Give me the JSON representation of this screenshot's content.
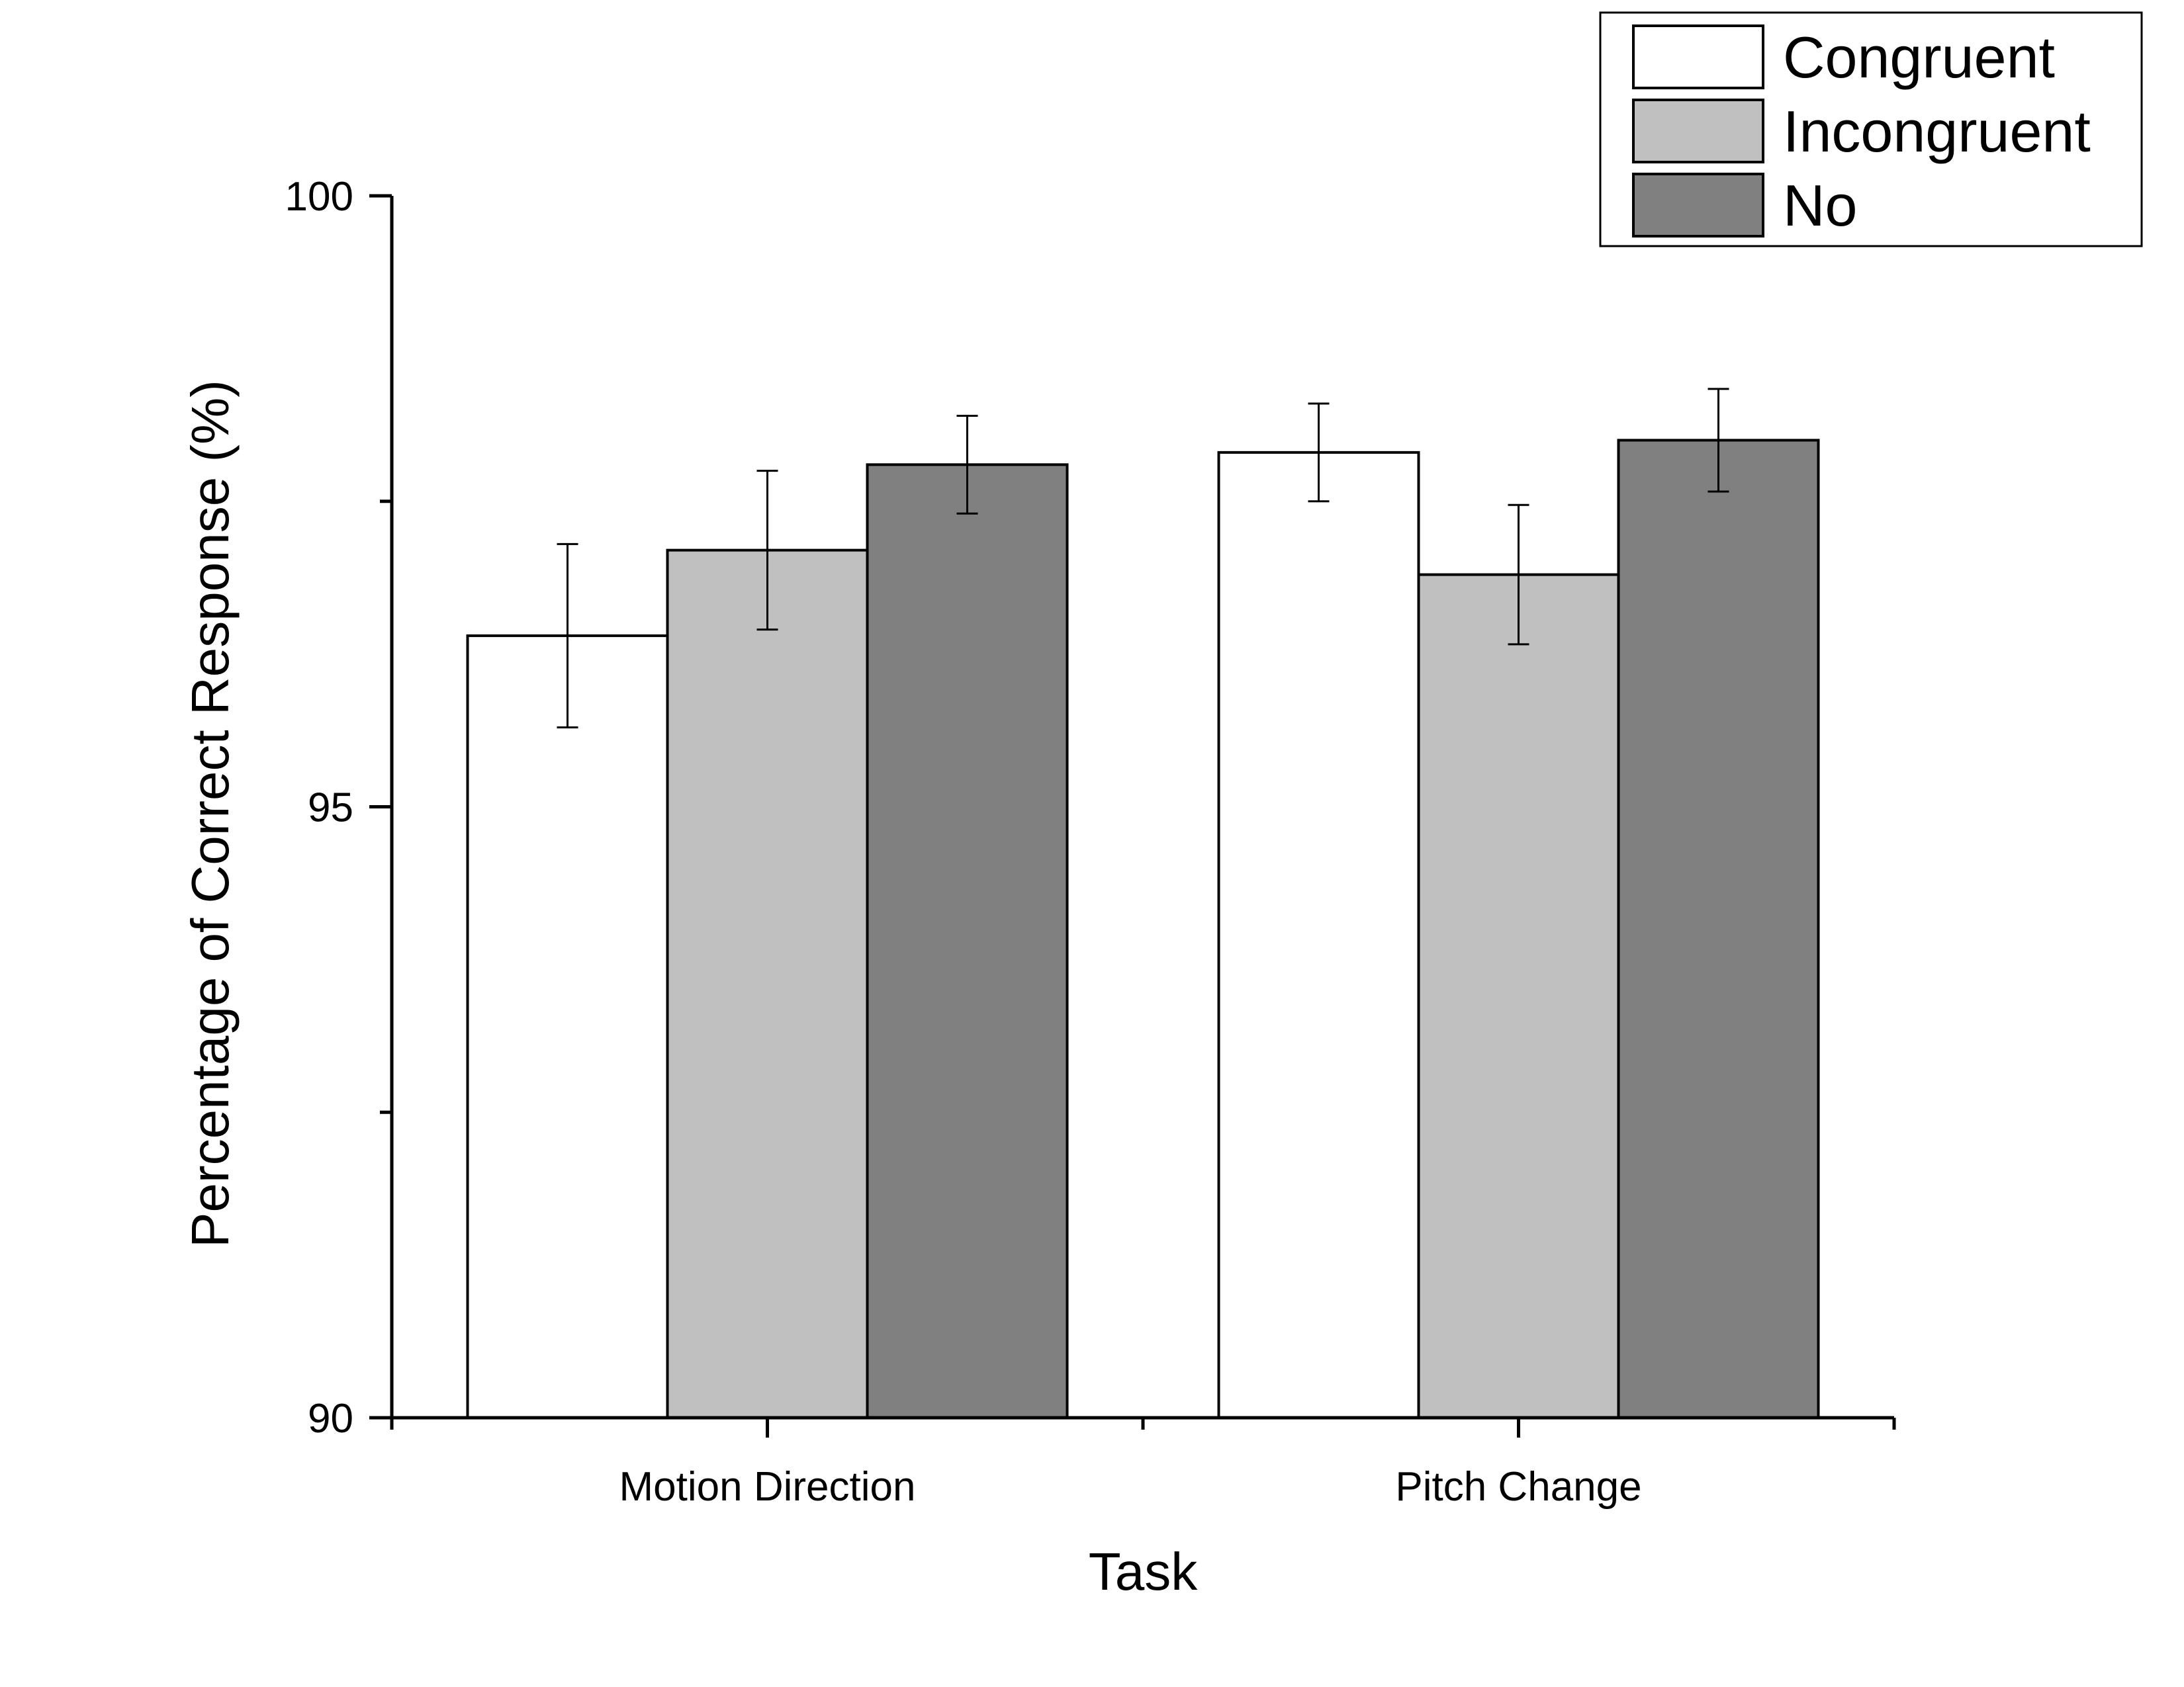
{
  "chart_data": {
    "type": "bar",
    "title": "",
    "xlabel": "Task",
    "ylabel": "Percentage of Correct Response (%)",
    "ylim": [
      90,
      100
    ],
    "yticks": [
      "90",
      "95",
      "100"
    ],
    "categories": [
      "Motion Direction",
      "Pitch Change"
    ],
    "series": [
      {
        "name": "Congruent",
        "color": "#ffffff",
        "values": [
          96.4,
          97.9
        ],
        "errors": [
          0.75,
          0.4
        ]
      },
      {
        "name": "Incongruent",
        "color": "#c0c0c0",
        "values": [
          97.1,
          96.9
        ],
        "errors": [
          0.65,
          0.57
        ]
      },
      {
        "name": "No",
        "color": "#808080",
        "values": [
          97.8,
          98.0
        ],
        "errors": [
          0.4,
          0.42
        ]
      }
    ],
    "legend_position": "top-right",
    "grid": false,
    "error_bars": true
  }
}
